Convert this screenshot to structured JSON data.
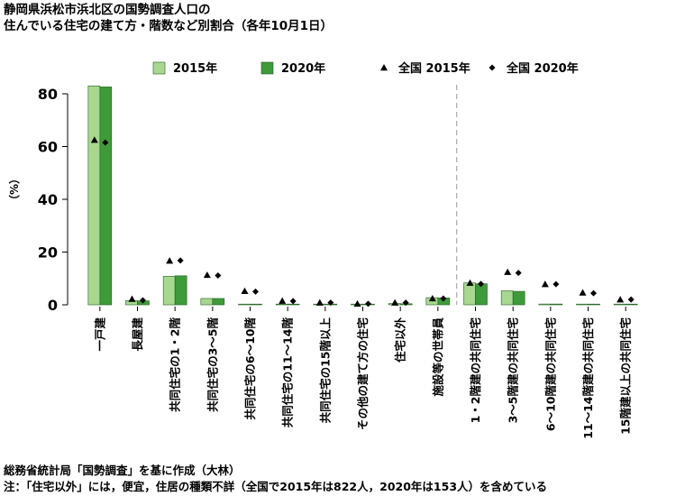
{
  "title_line1": "静岡県浜松市浜北区の国勢調査人口の",
  "title_line2": "住んでいる住宅の建て方・階数など別割合（各年10月1日）",
  "source": "総務省統計局「国勢調査」を基に作成（大林）",
  "note": "注：「住宅以外」には，便宜，住居の種類不詳（全国で2015年は822人，2020年は153人）を含めている",
  "chart_data": {
    "type": "bar",
    "ylabel": "（%）",
    "ylim": [
      0,
      90
    ],
    "yticks": [
      0,
      20,
      40,
      60,
      80
    ],
    "grid": false,
    "legend_position": "top",
    "categories": [
      "一戸建",
      "長屋建",
      "共同住宅の1・2階",
      "共同住宅の3～5階",
      "共同住宅の6～10階",
      "共同住宅の11～14階",
      "共同住宅の15階以上",
      "その他の建て方の住宅",
      "住宅以外",
      "施設等の世帯員",
      "1・2階建の共同住宅",
      "3～5階建の共同住宅",
      "6～10階建の共同住宅",
      "11～14階建の共同住宅",
      "15階建以上の共同住宅"
    ],
    "divider_after_index": 9,
    "series": [
      {
        "name": "2015年",
        "kind": "bar",
        "color": "#a8d890",
        "values": [
          83.0,
          1.6,
          10.8,
          2.4,
          0.2,
          0.0,
          0.0,
          0.1,
          0.5,
          2.7,
          8.3,
          5.3,
          0.3,
          0.0,
          0.0
        ]
      },
      {
        "name": "2020年",
        "kind": "bar",
        "color": "#3f9a3a",
        "values": [
          82.6,
          1.5,
          11.0,
          2.4,
          0.2,
          0.0,
          0.0,
          0.1,
          0.4,
          2.6,
          8.0,
          5.1,
          0.3,
          0.0,
          0.0
        ]
      },
      {
        "name": "全国 2015年",
        "kind": "marker",
        "marker": "triangle",
        "color": "#000000",
        "values": [
          62.5,
          2.2,
          16.7,
          11.3,
          5.2,
          1.5,
          0.8,
          0.4,
          0.8,
          2.4,
          8.3,
          12.4,
          7.8,
          4.6,
          2.0
        ]
      },
      {
        "name": "全国 2020年",
        "kind": "marker",
        "marker": "diamond",
        "color": "#000000",
        "values": [
          61.5,
          1.7,
          16.8,
          11.1,
          5.0,
          1.4,
          0.8,
          0.4,
          0.8,
          2.4,
          7.9,
          12.1,
          7.8,
          4.4,
          2.0
        ]
      }
    ]
  }
}
